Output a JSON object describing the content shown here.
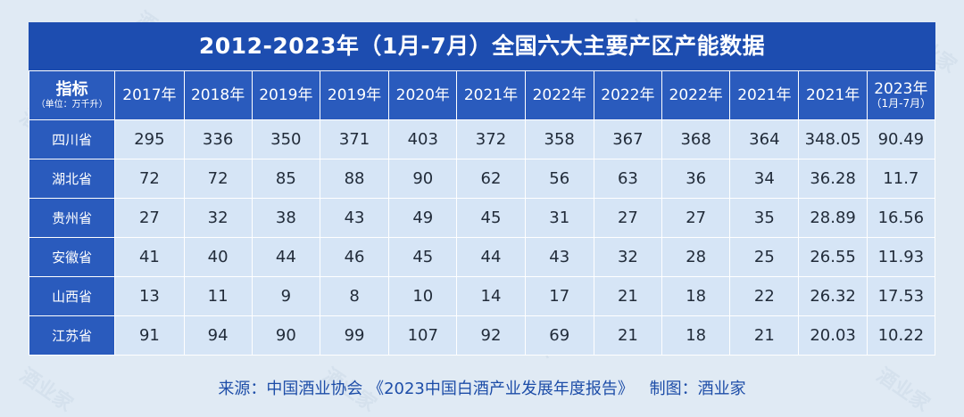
{
  "title": "2012-2023年（1月-7月）全国六大主要产区产能数据",
  "header": {
    "index_label": "指标",
    "unit_label": "（单位：万千升）",
    "years": [
      "2017年",
      "2018年",
      "2019年",
      "2019年",
      "2020年",
      "2021年",
      "2022年",
      "2022年",
      "2022年",
      "2021年",
      "2021年"
    ],
    "last_year": "2023年",
    "last_year_sub": "（1月-7月）"
  },
  "source": {
    "label": "来源：中国酒业协会 《2023中国白酒产业发展年度报告》",
    "maker": "制图：酒业家"
  },
  "watermark": "酒业家",
  "chart_data": {
    "type": "table",
    "title": "2012-2023年（1月-7月）全国六大主要产区产能数据",
    "unit": "万千升",
    "columns": [
      "2017年",
      "2018年",
      "2019年",
      "2019年",
      "2020年",
      "2021年",
      "2022年",
      "2022年",
      "2022年",
      "2021年",
      "2021年",
      "2023年（1月-7月）"
    ],
    "rows": [
      {
        "name": "四川省",
        "values": [
          "295",
          "336",
          "350",
          "371",
          "403",
          "372",
          "358",
          "367",
          "368",
          "364",
          "348.05",
          "90.49"
        ]
      },
      {
        "name": "湖北省",
        "values": [
          "72",
          "72",
          "85",
          "88",
          "90",
          "62",
          "56",
          "63",
          "36",
          "34",
          "36.28",
          "11.7"
        ]
      },
      {
        "name": "贵州省",
        "values": [
          "27",
          "32",
          "38",
          "43",
          "49",
          "45",
          "31",
          "27",
          "27",
          "35",
          "28.89",
          "16.56"
        ]
      },
      {
        "name": "安徽省",
        "values": [
          "41",
          "40",
          "44",
          "46",
          "45",
          "44",
          "43",
          "32",
          "28",
          "25",
          "26.55",
          "11.93"
        ]
      },
      {
        "name": "山西省",
        "values": [
          "13",
          "11",
          "9",
          "8",
          "10",
          "14",
          "17",
          "21",
          "18",
          "22",
          "26.32",
          "17.53"
        ]
      },
      {
        "name": "江苏省",
        "values": [
          "91",
          "94",
          "90",
          "99",
          "107",
          "92",
          "69",
          "21",
          "18",
          "21",
          "20.03",
          "10.22"
        ]
      }
    ]
  }
}
